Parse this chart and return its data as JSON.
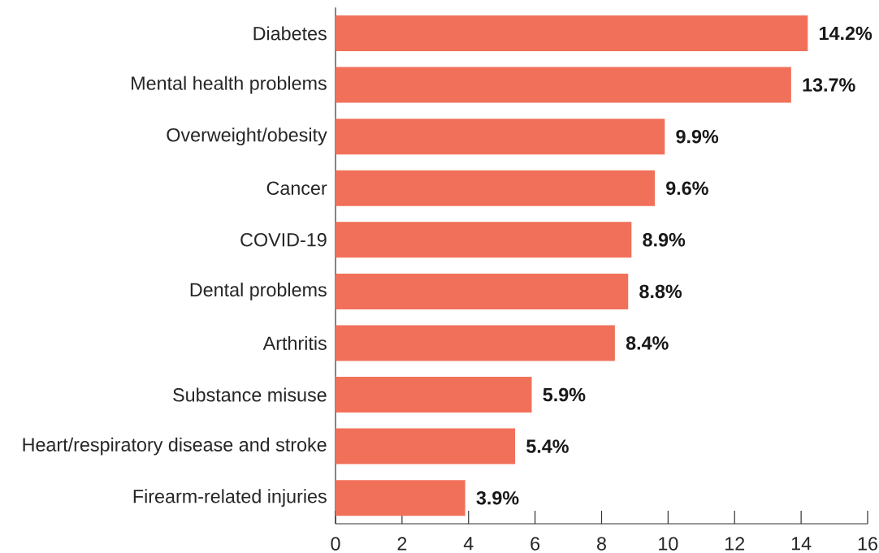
{
  "chart_data": {
    "type": "bar",
    "orientation": "horizontal",
    "categories": [
      "Diabetes",
      "Mental health problems",
      "Overweight/obesity",
      "Cancer",
      "COVID-19",
      "Dental problems",
      "Arthritis",
      "Substance misuse",
      "Heart/respiratory disease and stroke",
      "Firearm-related injuries"
    ],
    "values": [
      14.2,
      13.7,
      9.9,
      9.6,
      8.9,
      8.8,
      8.4,
      5.9,
      5.4,
      3.9
    ],
    "value_labels": [
      "14.2%",
      "13.7%",
      "9.9%",
      "9.6%",
      "8.9%",
      "8.8%",
      "8.4%",
      "5.9%",
      "5.4%",
      "3.9%"
    ],
    "color": "#f1705a",
    "xlim": [
      0,
      16
    ],
    "xticks": [
      0,
      2,
      4,
      6,
      8,
      10,
      12,
      14,
      16
    ]
  }
}
